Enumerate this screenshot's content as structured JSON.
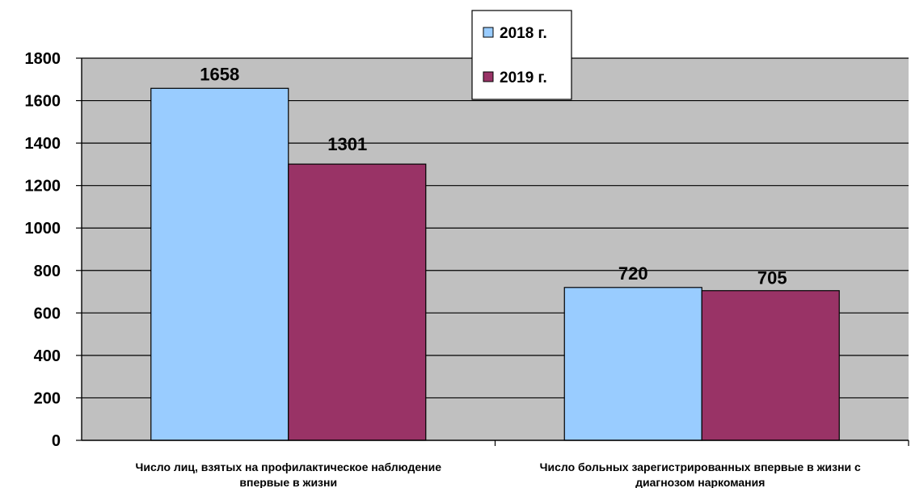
{
  "chart_data": {
    "type": "bar",
    "categories": [
      [
        "Число лиц, взятых на профилактическое наблюдение",
        "впервые в жизни"
      ],
      [
        "Число больных зарегистрированных впервые в жизни с",
        "диагнозом наркомания"
      ]
    ],
    "series": [
      {
        "name": "2018 г.",
        "values": [
          1658,
          720
        ],
        "color": "#99ccff"
      },
      {
        "name": "2019 г.",
        "values": [
          1301,
          705
        ],
        "color": "#993366"
      }
    ],
    "ylim": [
      0,
      1800
    ],
    "yticks": [
      0,
      200,
      400,
      600,
      800,
      1000,
      1200,
      1400,
      1600,
      1800
    ],
    "grid": true,
    "legend_position": "top-center",
    "plot_background": "#c0c0c0",
    "title": "",
    "xlabel": "",
    "ylabel": ""
  }
}
